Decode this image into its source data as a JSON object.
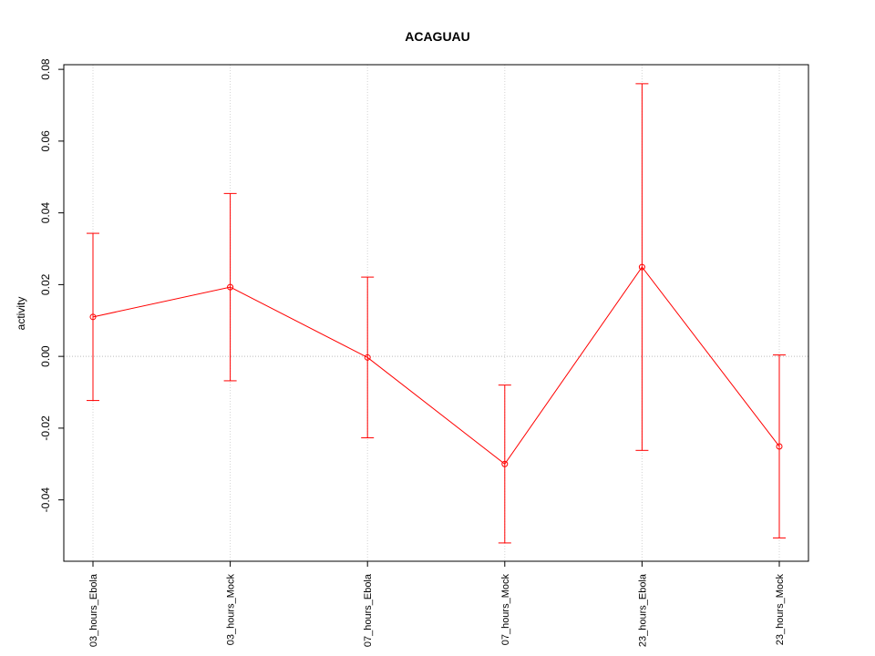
{
  "chart_data": {
    "type": "line",
    "title": "ACAGUAU",
    "y_label": "activity",
    "categories": [
      "03_hours_Ebola",
      "03_hours_Mock",
      "07_hours_Ebola",
      "07_hours_Mock",
      "23_hours_Ebola",
      "23_hours_Mock"
    ],
    "series": [
      {
        "color": "#ff0000",
        "values": [
          0.011,
          0.0193,
          -0.0003,
          -0.03,
          0.0249,
          -0.0251
        ],
        "errors": [
          0.0233,
          0.0261,
          0.0224,
          0.022,
          0.0511,
          0.0255
        ]
      }
    ],
    "ylim": [
      -0.0571,
      0.0813
    ],
    "yticks": [
      -0.04,
      -0.02,
      {
        "value": 0,
        "label": "0.00"
      },
      0.02,
      0.04,
      0.06,
      0.08
    ],
    "reference_line": 0,
    "grid": true
  }
}
